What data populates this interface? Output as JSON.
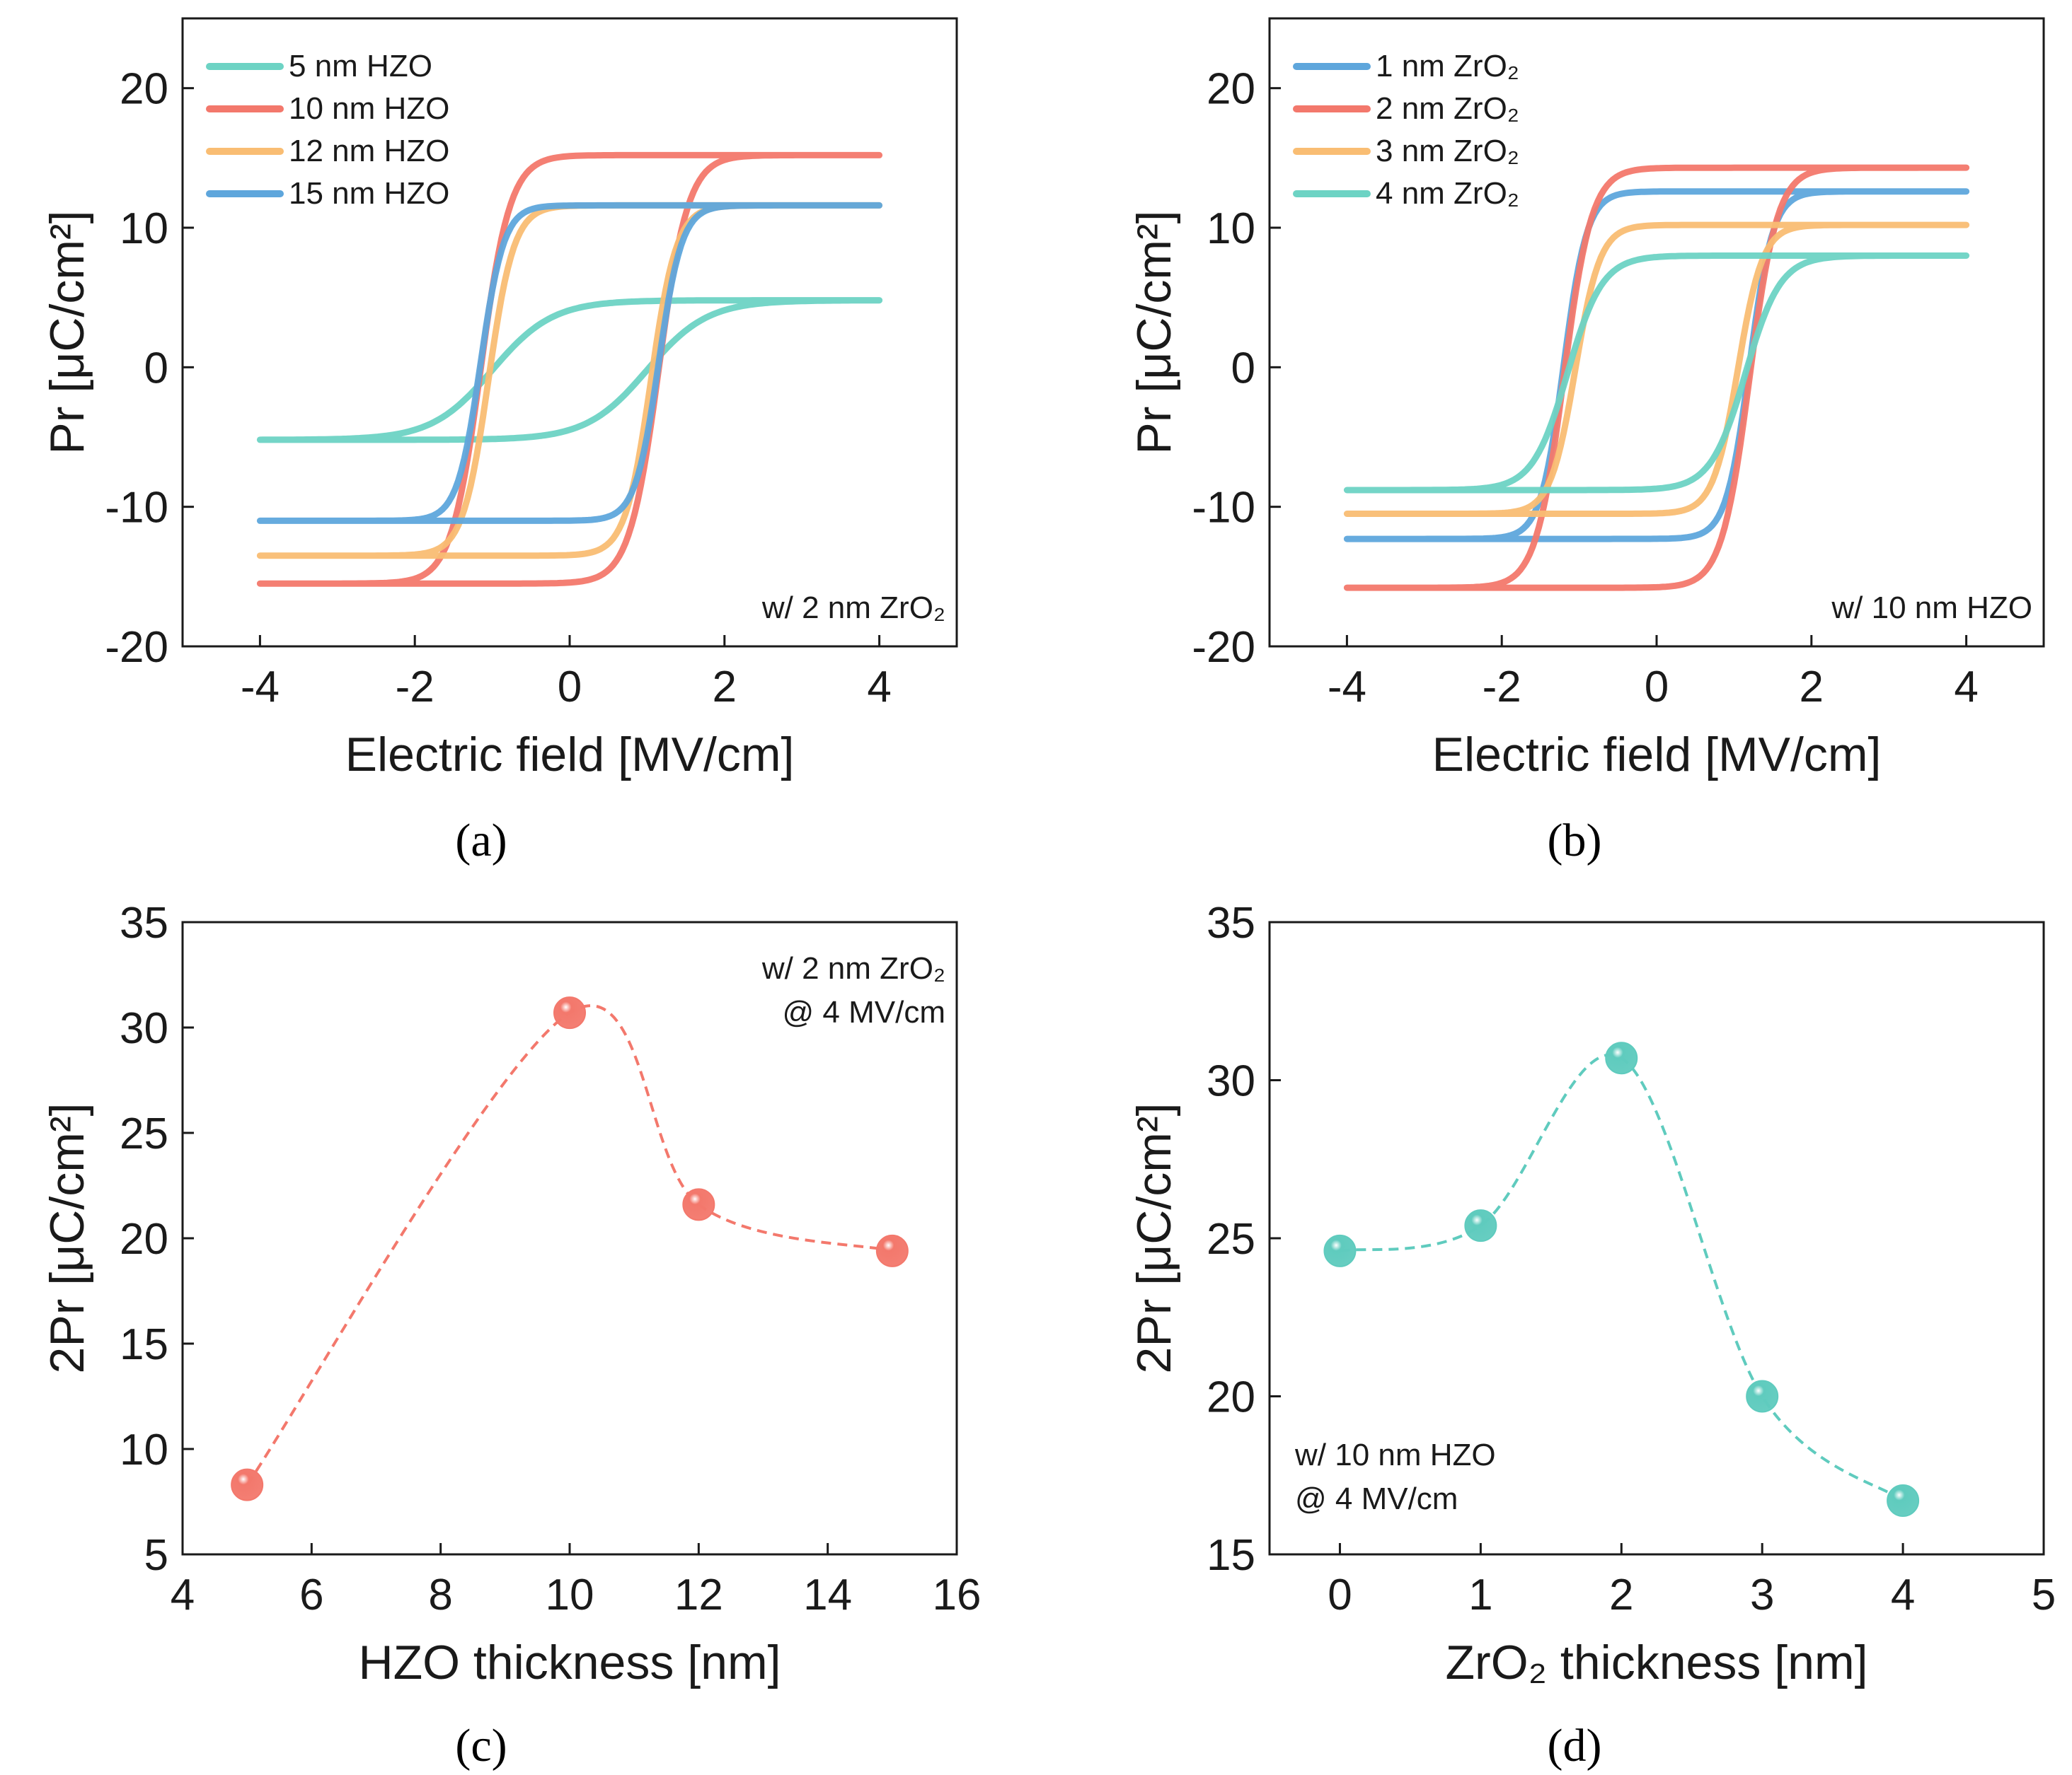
{
  "colors": {
    "teal": "#6dd3c4",
    "red": "#f3786c",
    "orange": "#f9bd73",
    "blue": "#5ea6dc",
    "axis": "#1a1a1a",
    "marker_c": "#f3786c",
    "marker_d": "#5fcbbe"
  },
  "chart_data": [
    {
      "id": "a",
      "type": "line",
      "caption": "(a)",
      "caption_letter": "a",
      "title": "",
      "xlabel": "Electric field [MV/cm]",
      "ylabel": "Pr [μC/cm²]",
      "xlim": [
        -5,
        5
      ],
      "ylim": [
        -20,
        25
      ],
      "xticks": [
        -4,
        -2,
        0,
        2,
        4
      ],
      "xtick_labels": [
        "-4",
        "-2",
        "0",
        "2",
        "4"
      ],
      "yticks": [
        -20,
        -10,
        0,
        10,
        20
      ],
      "ytick_labels": [
        "-20",
        "-10",
        "0",
        "10",
        "20"
      ],
      "legend": "top-left",
      "note": [
        "w/ 2 nm ZrO₂"
      ],
      "series": [
        {
          "name": "5 nm   HZO",
          "color": "#6dd3c4",
          "Pr_sat": 4.8,
          "Ec": 1.0,
          "k": 0.78,
          "min_sat": -5.2
        },
        {
          "name": "10 nm HZO",
          "color": "#f3786c",
          "Pr_sat": 15.2,
          "Ec": 1.15,
          "k": 0.38,
          "min_sat": -15.5
        },
        {
          "name": "12 nm HZO",
          "color": "#f9bd73",
          "Pr_sat": 11.6,
          "Ec": 1.05,
          "k": 0.33,
          "min_sat": -13.5
        },
        {
          "name": "15 nm HZO",
          "color": "#5ea6dc",
          "Pr_sat": 11.6,
          "Ec": 1.15,
          "k": 0.3,
          "min_sat": -11.0
        }
      ]
    },
    {
      "id": "b",
      "type": "line",
      "caption": "(b)",
      "caption_letter": "b",
      "title": "",
      "xlabel": "Electric field [MV/cm]",
      "ylabel": "Pr [μC/cm²]",
      "xlim": [
        -5,
        5
      ],
      "ylim": [
        -20,
        25
      ],
      "xticks": [
        -4,
        -2,
        0,
        2,
        4
      ],
      "xtick_labels": [
        "-4",
        "-2",
        "0",
        "2",
        "4"
      ],
      "yticks": [
        -20,
        -10,
        0,
        10,
        20
      ],
      "ytick_labels": [
        "-20",
        "-10",
        "0",
        "10",
        "20"
      ],
      "legend": "top-left",
      "note": [
        "w/ 10 nm HZO"
      ],
      "series": [
        {
          "name": "1 nm ZrO₂",
          "color": "#5ea6dc",
          "Pr_sat": 12.6,
          "Ec": 1.2,
          "k": 0.3,
          "min_sat": -12.3
        },
        {
          "name": "2 nm ZrO₂",
          "color": "#f3786c",
          "Pr_sat": 14.3,
          "Ec": 1.2,
          "k": 0.36,
          "min_sat": -15.8
        },
        {
          "name": "3 nm ZrO₂",
          "color": "#f9bd73",
          "Pr_sat": 10.2,
          "Ec": 1.05,
          "k": 0.32,
          "min_sat": -10.5
        },
        {
          "name": "4 nm ZrO₂",
          "color": "#6dd3c4",
          "Pr_sat": 8.0,
          "Ec": 1.15,
          "k": 0.45,
          "min_sat": -8.8
        }
      ]
    },
    {
      "id": "c",
      "type": "scatter",
      "caption": "(c)",
      "caption_letter": "c",
      "title": "",
      "xlabel": "HZO thickness [nm]",
      "ylabel": "2Pr [μC/cm²]",
      "xlim": [
        4,
        16
      ],
      "ylim": [
        5,
        35
      ],
      "xticks": [
        4,
        6,
        8,
        10,
        12,
        14,
        16
      ],
      "xtick_labels": [
        "4",
        "6",
        "8",
        "10",
        "12",
        "14",
        "16"
      ],
      "yticks": [
        5,
        10,
        15,
        20,
        25,
        30,
        35
      ],
      "ytick_labels": [
        "5",
        "10",
        "15",
        "20",
        "25",
        "30",
        "35"
      ],
      "note": [
        "w/ 2 nm ZrO₂",
        "@ 4 MV/cm"
      ],
      "x": [
        5,
        10,
        12,
        15
      ],
      "y": [
        8.3,
        30.7,
        21.6,
        19.4
      ],
      "color": "#f3786c"
    },
    {
      "id": "d",
      "type": "scatter",
      "caption": "(d)",
      "caption_letter": "d",
      "title": "",
      "xlabel": "ZrO₂ thickness [nm]",
      "ylabel": "2Pr [μC/cm²]",
      "xlim": [
        -0.5,
        5
      ],
      "ylim": [
        15,
        35
      ],
      "xticks": [
        0,
        1,
        2,
        3,
        4,
        5
      ],
      "xtick_labels": [
        "0",
        "1",
        "2",
        "3",
        "4",
        "5"
      ],
      "yticks": [
        15,
        20,
        25,
        30,
        35
      ],
      "ytick_labels": [
        "15",
        "20",
        "25",
        "30",
        "35"
      ],
      "note": [
        "w/ 10 nm HZO",
        "@ 4 MV/cm"
      ],
      "x": [
        0,
        1,
        2,
        3,
        4
      ],
      "y": [
        24.6,
        25.4,
        30.7,
        20.0,
        16.7
      ],
      "color": "#5fcbbe"
    }
  ]
}
